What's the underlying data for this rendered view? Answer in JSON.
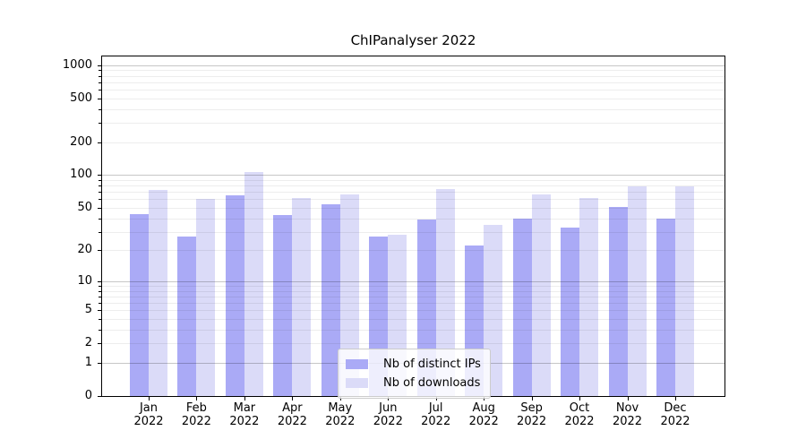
{
  "chart_data": {
    "type": "bar",
    "title": "ChIPanalyser 2022",
    "categories": [
      "Jan",
      "Feb",
      "Mar",
      "Apr",
      "May",
      "Jun",
      "Jul",
      "Aug",
      "Sep",
      "Oct",
      "Nov",
      "Dec"
    ],
    "category_year": "2022",
    "series": [
      {
        "name": "Nb of distinct IPs",
        "color": "#aaaaf6",
        "values": [
          44,
          27,
          65,
          43,
          54,
          27,
          39,
          22,
          40,
          33,
          51,
          40
        ]
      },
      {
        "name": "Nb of downloads",
        "color": "#dbdbf8",
        "values": [
          73,
          60,
          107,
          61,
          67,
          28,
          75,
          35,
          67,
          61,
          79,
          79
        ]
      }
    ],
    "xlabel": "",
    "ylabel": "",
    "yscale": "log1p",
    "ylim": [
      0,
      1220
    ],
    "ytick_labels": [
      "0",
      "1",
      "2",
      "5",
      "10",
      "20",
      "50",
      "100",
      "200",
      "500",
      "1000"
    ],
    "ytick_values": [
      0,
      1,
      2,
      5,
      10,
      20,
      50,
      100,
      200,
      500,
      1000
    ],
    "grid": {
      "orientation": "horizontal",
      "major_values": [
        1,
        10,
        100,
        1000
      ],
      "minor_values": [
        2,
        3,
        4,
        5,
        6,
        7,
        8,
        9,
        20,
        30,
        40,
        50,
        60,
        70,
        80,
        90,
        200,
        300,
        400,
        500,
        600,
        700,
        800,
        900
      ]
    },
    "legend": {
      "position": "inside-lower-center",
      "entries": [
        "Nb of distinct IPs",
        "Nb of downloads"
      ]
    }
  },
  "colors": {
    "bar_distinct_ips": "#aaaaf6",
    "bar_downloads": "#dbdbf8",
    "grid_major": "rgba(0,0,0,0.22)",
    "grid_minor": "rgba(0,0,0,0.07)",
    "axis": "#000000",
    "legend_border": "#cccccc",
    "background": "#ffffff"
  }
}
